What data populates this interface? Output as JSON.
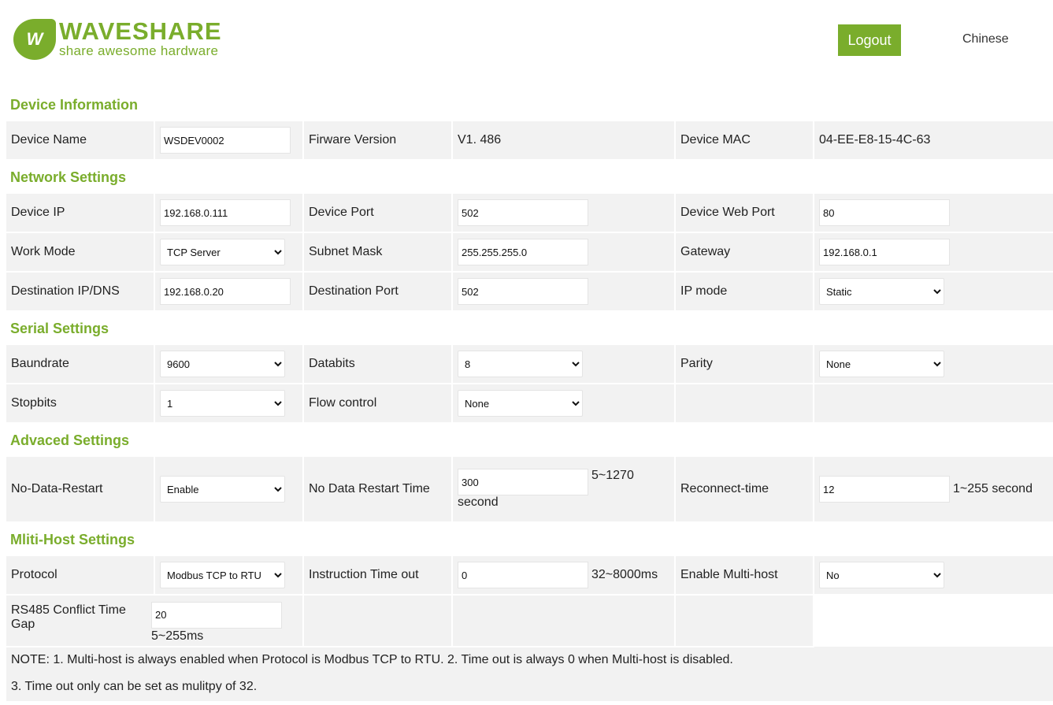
{
  "header": {
    "logo_title": "WAVESHARE",
    "logo_sub": "share awesome hardware",
    "logo_mark": "W",
    "logout": "Logout",
    "language": "Chinese"
  },
  "sections": [
    {
      "title": "Device Information",
      "rows": [
        [
          {
            "label": "Device Name"
          },
          {
            "input": "WSDEV0002"
          },
          {
            "label": "Firware Version"
          },
          {
            "text": "V1. 486"
          },
          {
            "label": "Device MAC"
          },
          {
            "text": "04-EE-E8-15-4C-63"
          }
        ]
      ]
    },
    {
      "title": "Network Settings",
      "rows": [
        [
          {
            "label": "Device IP"
          },
          {
            "input": "192.168.0.111"
          },
          {
            "label": "Device Port"
          },
          {
            "input": "502"
          },
          {
            "label": "Device Web Port"
          },
          {
            "input": "80"
          }
        ],
        [
          {
            "label": "Work Mode"
          },
          {
            "select": "TCP Server"
          },
          {
            "label": "Subnet Mask"
          },
          {
            "input": "255.255.255.0"
          },
          {
            "label": "Gateway"
          },
          {
            "input": "192.168.0.1"
          }
        ],
        [
          {
            "label": "Destination IP/DNS"
          },
          {
            "input": "192.168.0.20"
          },
          {
            "label": "Destination Port"
          },
          {
            "input": "502"
          },
          {
            "label": "IP mode"
          },
          {
            "select": "Static"
          }
        ]
      ]
    },
    {
      "title": "Serial Settings",
      "rows": [
        [
          {
            "label": "Baundrate"
          },
          {
            "select": "9600"
          },
          {
            "label": "Databits"
          },
          {
            "select": "8"
          },
          {
            "label": "Parity"
          },
          {
            "select": "None"
          }
        ],
        [
          {
            "label": "Stopbits"
          },
          {
            "select": "1"
          },
          {
            "label": "Flow control"
          },
          {
            "select": "None"
          },
          {},
          {}
        ]
      ]
    },
    {
      "title": "Advaced Settings",
      "rows": [
        [
          {
            "label": "No-Data-Restart"
          },
          {
            "select": "Enable"
          },
          {
            "label": "No Data Restart Time"
          },
          {
            "input": "300",
            "hint": "5~1270 second"
          },
          {
            "label": "Reconnect-time"
          },
          {
            "input": "12",
            "hint": "1~255 second"
          }
        ]
      ]
    },
    {
      "title": "Mliti-Host Settings",
      "rows": [
        [
          {
            "label": "Protocol"
          },
          {
            "select": "Modbus TCP to RTU"
          },
          {
            "label": "Instruction Time out"
          },
          {
            "input": "0",
            "hint": "32~8000ms"
          },
          {
            "label": "Enable Multi-host"
          },
          {
            "select": "No"
          }
        ],
        [
          {
            "label": "RS485 Conflict Time Gap",
            "input": "20",
            "hint": "5~255ms",
            "span": 2
          },
          {},
          {},
          {}
        ]
      ]
    }
  ],
  "notes": [
    "NOTE: 1. Multi-host is always enabled when Protocol is Modbus TCP to RTU. 2. Time out is always 0 when Multi-host is disabled.",
    "3. Time out only can be set as mulitpy of 32."
  ],
  "colors": {
    "accent": "#7aad2c",
    "cell_bg": "#f2f2f2"
  }
}
